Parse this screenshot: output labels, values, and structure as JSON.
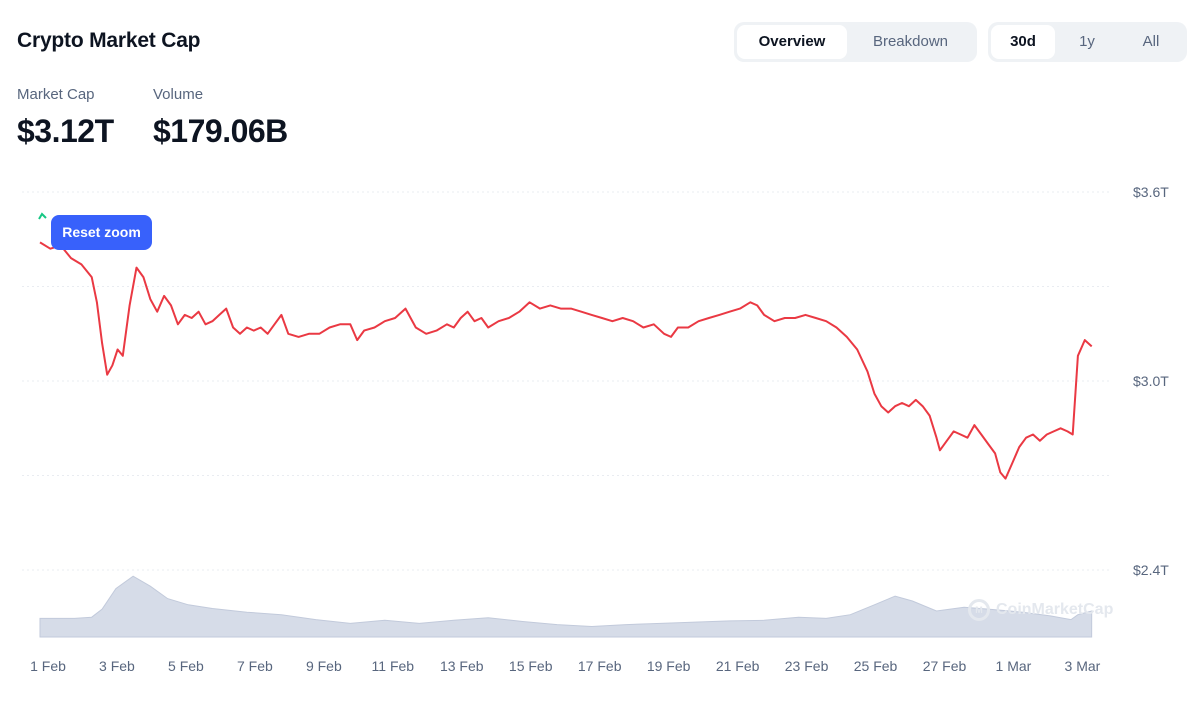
{
  "header": {
    "title": "Crypto Market Cap",
    "view_tabs": [
      {
        "label": "Overview",
        "active": true
      },
      {
        "label": "Breakdown",
        "active": false
      }
    ],
    "range_tabs": [
      {
        "label": "30d",
        "active": true
      },
      {
        "label": "1y",
        "active": false
      },
      {
        "label": "All",
        "active": false
      }
    ]
  },
  "stats": {
    "market_cap_label": "Market Cap",
    "market_cap_value": "$3.12T",
    "volume_label": "Volume",
    "volume_value": "$179.06B"
  },
  "reset_zoom_label": "Reset zoom",
  "watermark": "CoinMarketCap",
  "colors": {
    "line": "#ea3943",
    "volume": "#cfd6e4",
    "accent": "#3861fb",
    "muted_text": "#58667e"
  },
  "chart_data": {
    "type": "line",
    "title": "",
    "ylabel": "",
    "xlabel": "",
    "ylim": [
      2.4,
      3.6
    ],
    "xlim": [
      0,
      30.8
    ],
    "y_ticks": [
      {
        "value": 3.6,
        "label": "$3.6T"
      },
      {
        "value": 3.0,
        "label": "$3.0T"
      },
      {
        "value": 2.4,
        "label": "$2.4T"
      }
    ],
    "y_grid": [
      3.6,
      3.3,
      3.0,
      2.7,
      2.4
    ],
    "x_ticks": [
      {
        "x": 0,
        "label": "1 Feb"
      },
      {
        "x": 2,
        "label": "3 Feb"
      },
      {
        "x": 4,
        "label": "5 Feb"
      },
      {
        "x": 6,
        "label": "7 Feb"
      },
      {
        "x": 8,
        "label": "9 Feb"
      },
      {
        "x": 10,
        "label": "11 Feb"
      },
      {
        "x": 12,
        "label": "13 Feb"
      },
      {
        "x": 14,
        "label": "15 Feb"
      },
      {
        "x": 16,
        "label": "17 Feb"
      },
      {
        "x": 18,
        "label": "19 Feb"
      },
      {
        "x": 20,
        "label": "21 Feb"
      },
      {
        "x": 22,
        "label": "23 Feb"
      },
      {
        "x": 24,
        "label": "25 Feb"
      },
      {
        "x": 26,
        "label": "27 Feb"
      },
      {
        "x": 28,
        "label": "1 Mar"
      },
      {
        "x": 30,
        "label": "3 Mar"
      }
    ],
    "grid": true,
    "series": [
      {
        "name": "",
        "points": [
          [
            0.0,
            3.44
          ],
          [
            0.3,
            3.42
          ],
          [
            0.6,
            3.43
          ],
          [
            0.9,
            3.39
          ],
          [
            1.2,
            3.37
          ],
          [
            1.5,
            3.33
          ],
          [
            1.65,
            3.25
          ],
          [
            1.8,
            3.12
          ],
          [
            1.95,
            3.02
          ],
          [
            2.1,
            3.05
          ],
          [
            2.25,
            3.1
          ],
          [
            2.4,
            3.08
          ],
          [
            2.6,
            3.24
          ],
          [
            2.8,
            3.36
          ],
          [
            3.0,
            3.33
          ],
          [
            3.2,
            3.26
          ],
          [
            3.4,
            3.22
          ],
          [
            3.6,
            3.27
          ],
          [
            3.8,
            3.24
          ],
          [
            4.0,
            3.18
          ],
          [
            4.2,
            3.21
          ],
          [
            4.4,
            3.2
          ],
          [
            4.6,
            3.22
          ],
          [
            4.8,
            3.18
          ],
          [
            5.0,
            3.19
          ],
          [
            5.2,
            3.21
          ],
          [
            5.4,
            3.23
          ],
          [
            5.6,
            3.17
          ],
          [
            5.8,
            3.15
          ],
          [
            6.0,
            3.17
          ],
          [
            6.2,
            3.16
          ],
          [
            6.4,
            3.17
          ],
          [
            6.6,
            3.15
          ],
          [
            6.8,
            3.18
          ],
          [
            7.0,
            3.21
          ],
          [
            7.2,
            3.15
          ],
          [
            7.5,
            3.14
          ],
          [
            7.8,
            3.15
          ],
          [
            8.1,
            3.15
          ],
          [
            8.4,
            3.17
          ],
          [
            8.7,
            3.18
          ],
          [
            9.0,
            3.18
          ],
          [
            9.2,
            3.13
          ],
          [
            9.4,
            3.16
          ],
          [
            9.7,
            3.17
          ],
          [
            10.0,
            3.19
          ],
          [
            10.3,
            3.2
          ],
          [
            10.6,
            3.23
          ],
          [
            10.9,
            3.17
          ],
          [
            11.2,
            3.15
          ],
          [
            11.5,
            3.16
          ],
          [
            11.8,
            3.18
          ],
          [
            12.0,
            3.17
          ],
          [
            12.2,
            3.2
          ],
          [
            12.4,
            3.22
          ],
          [
            12.6,
            3.19
          ],
          [
            12.8,
            3.2
          ],
          [
            13.0,
            3.17
          ],
          [
            13.3,
            3.19
          ],
          [
            13.6,
            3.2
          ],
          [
            13.9,
            3.22
          ],
          [
            14.2,
            3.25
          ],
          [
            14.5,
            3.23
          ],
          [
            14.8,
            3.24
          ],
          [
            15.1,
            3.23
          ],
          [
            15.4,
            3.23
          ],
          [
            15.7,
            3.22
          ],
          [
            16.0,
            3.21
          ],
          [
            16.3,
            3.2
          ],
          [
            16.6,
            3.19
          ],
          [
            16.9,
            3.2
          ],
          [
            17.2,
            3.19
          ],
          [
            17.5,
            3.17
          ],
          [
            17.8,
            3.18
          ],
          [
            18.1,
            3.15
          ],
          [
            18.3,
            3.14
          ],
          [
            18.5,
            3.17
          ],
          [
            18.8,
            3.17
          ],
          [
            19.1,
            3.19
          ],
          [
            19.4,
            3.2
          ],
          [
            19.7,
            3.21
          ],
          [
            20.0,
            3.22
          ],
          [
            20.3,
            3.23
          ],
          [
            20.6,
            3.25
          ],
          [
            20.8,
            3.24
          ],
          [
            21.0,
            3.21
          ],
          [
            21.3,
            3.19
          ],
          [
            21.6,
            3.2
          ],
          [
            21.9,
            3.2
          ],
          [
            22.2,
            3.21
          ],
          [
            22.5,
            3.2
          ],
          [
            22.8,
            3.19
          ],
          [
            23.1,
            3.17
          ],
          [
            23.4,
            3.14
          ],
          [
            23.7,
            3.1
          ],
          [
            24.0,
            3.03
          ],
          [
            24.2,
            2.96
          ],
          [
            24.4,
            2.92
          ],
          [
            24.6,
            2.9
          ],
          [
            24.8,
            2.92
          ],
          [
            25.0,
            2.93
          ],
          [
            25.2,
            2.92
          ],
          [
            25.4,
            2.94
          ],
          [
            25.6,
            2.92
          ],
          [
            25.8,
            2.89
          ],
          [
            26.0,
            2.82
          ],
          [
            26.1,
            2.78
          ],
          [
            26.3,
            2.81
          ],
          [
            26.5,
            2.84
          ],
          [
            26.7,
            2.83
          ],
          [
            26.9,
            2.82
          ],
          [
            27.1,
            2.86
          ],
          [
            27.3,
            2.83
          ],
          [
            27.5,
            2.8
          ],
          [
            27.7,
            2.77
          ],
          [
            27.85,
            2.71
          ],
          [
            28.0,
            2.69
          ],
          [
            28.2,
            2.74
          ],
          [
            28.4,
            2.79
          ],
          [
            28.6,
            2.82
          ],
          [
            28.8,
            2.83
          ],
          [
            29.0,
            2.81
          ],
          [
            29.2,
            2.83
          ],
          [
            29.4,
            2.84
          ],
          [
            29.6,
            2.85
          ],
          [
            29.8,
            2.84
          ],
          [
            29.95,
            2.83
          ],
          [
            30.1,
            3.08
          ],
          [
            30.3,
            3.13
          ],
          [
            30.5,
            3.11
          ]
        ]
      }
    ],
    "volume_points": [
      [
        0.0,
        0.3
      ],
      [
        1.0,
        0.3
      ],
      [
        1.5,
        0.32
      ],
      [
        1.8,
        0.45
      ],
      [
        2.2,
        0.78
      ],
      [
        2.7,
        0.98
      ],
      [
        3.2,
        0.82
      ],
      [
        3.7,
        0.62
      ],
      [
        4.3,
        0.52
      ],
      [
        5.0,
        0.46
      ],
      [
        6.0,
        0.4
      ],
      [
        7.0,
        0.36
      ],
      [
        8.0,
        0.28
      ],
      [
        9.0,
        0.22
      ],
      [
        10.0,
        0.27
      ],
      [
        11.0,
        0.22
      ],
      [
        12.0,
        0.27
      ],
      [
        13.0,
        0.31
      ],
      [
        14.0,
        0.25
      ],
      [
        15.0,
        0.2
      ],
      [
        16.0,
        0.17
      ],
      [
        17.0,
        0.2
      ],
      [
        18.0,
        0.22
      ],
      [
        19.0,
        0.24
      ],
      [
        20.0,
        0.26
      ],
      [
        21.0,
        0.27
      ],
      [
        22.0,
        0.32
      ],
      [
        22.8,
        0.3
      ],
      [
        23.5,
        0.36
      ],
      [
        24.2,
        0.52
      ],
      [
        24.8,
        0.66
      ],
      [
        25.3,
        0.58
      ],
      [
        26.0,
        0.42
      ],
      [
        26.8,
        0.48
      ],
      [
        27.5,
        0.45
      ],
      [
        28.5,
        0.4
      ],
      [
        29.3,
        0.34
      ],
      [
        29.9,
        0.28
      ],
      [
        30.1,
        0.36
      ],
      [
        30.5,
        0.42
      ]
    ]
  }
}
